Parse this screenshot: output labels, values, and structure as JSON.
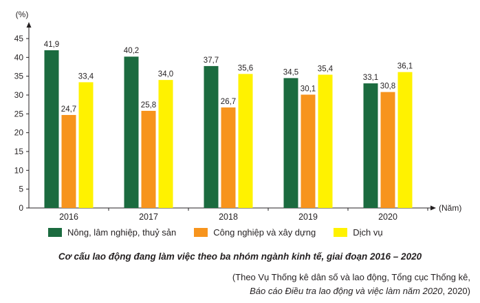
{
  "chart_data": {
    "type": "bar",
    "categories": [
      "2016",
      "2017",
      "2018",
      "2019",
      "2020"
    ],
    "series": [
      {
        "name": "Nông, lâm nghiệp, thuỷ sản",
        "values": [
          41.9,
          40.2,
          37.7,
          34.5,
          33.1
        ],
        "color": "#1b6b3f"
      },
      {
        "name": "Công nghiệp và xây dựng",
        "values": [
          24.7,
          25.8,
          26.7,
          30.1,
          30.8
        ],
        "color": "#f7941d"
      },
      {
        "name": "Dịch vụ",
        "values": [
          33.4,
          34.0,
          35.6,
          35.4,
          36.1
        ],
        "color": "#fff200"
      }
    ],
    "value_labels": [
      [
        "41,9",
        "40,2",
        "37,7",
        "34,5",
        "33,1"
      ],
      [
        "24,7",
        "25,8",
        "26,7",
        "30,1",
        "30,8"
      ],
      [
        "33,4",
        "34,0",
        "35,6",
        "35,4",
        "36,1"
      ]
    ],
    "ylabel": "(%)",
    "xlabel": "(Năm)",
    "ylim": [
      0,
      45
    ],
    "yticks": [
      "0",
      "5",
      "10",
      "15",
      "20",
      "25",
      "30",
      "35",
      "40",
      "45"
    ],
    "grid": false,
    "legend_position": "bottom"
  },
  "caption": "Cơ cấu lao động đang làm việc theo ba nhóm ngành kinh tế, giai đoạn 2016 – 2020",
  "source": {
    "line1": "(Theo Vụ Thống kê dân số và lao động, Tổng cục Thống kê,",
    "line2_italic": "Báo cáo Điều tra lao động và việc làm năm 2020",
    "line2_tail": ", 2020)"
  }
}
